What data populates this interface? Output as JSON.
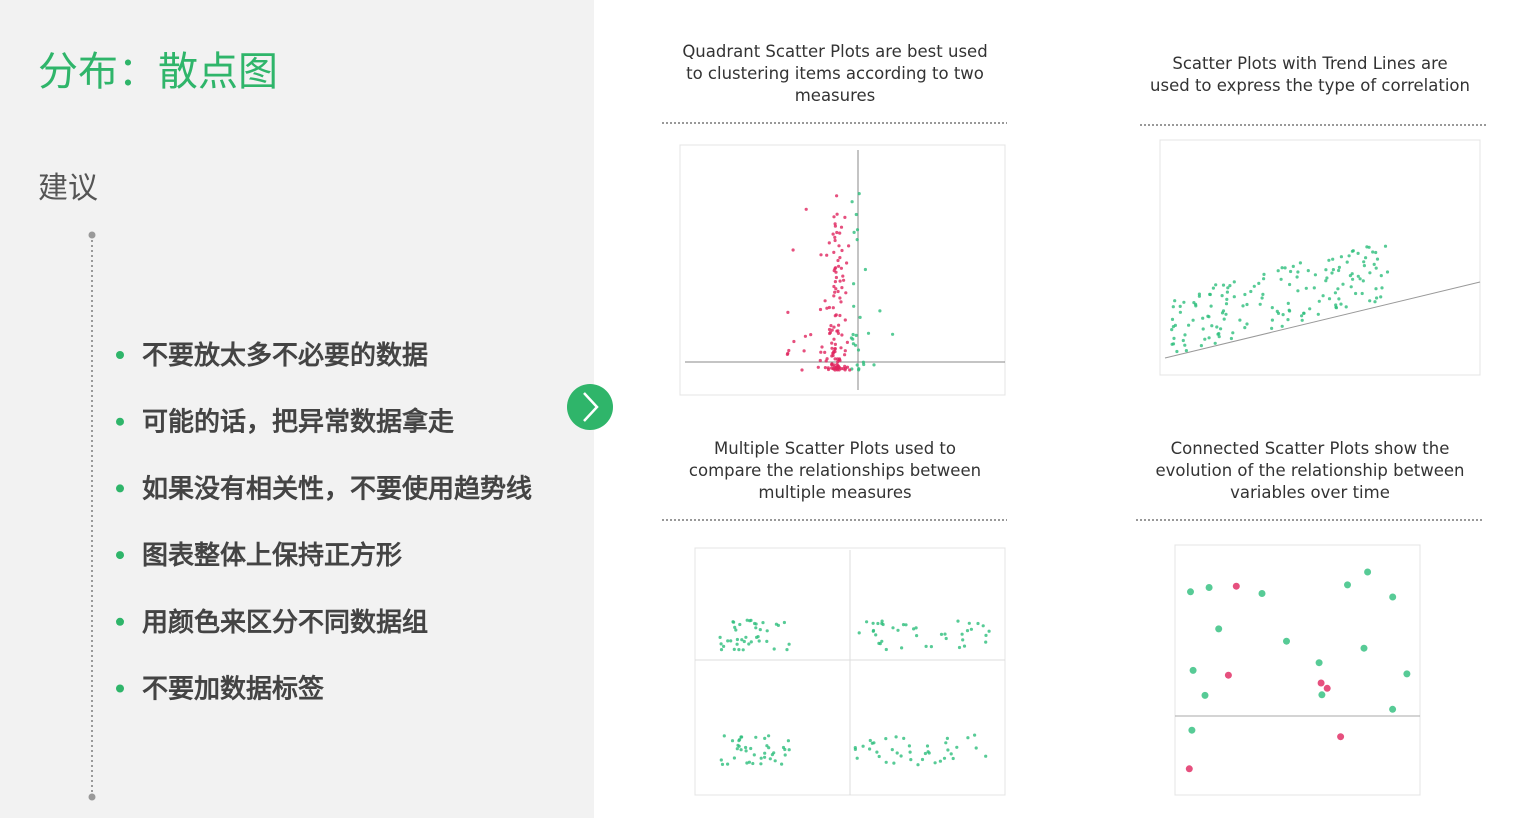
{
  "slide": {
    "title": "分布：散点图",
    "section": "建议",
    "bullets": [
      "不要放太多不必要的数据",
      "可能的话，把异常数据拿走",
      "如果没有相关性，不要使用趋势线",
      "图表整体上保持正方形",
      "用颜色来区分不同数据组",
      "不要加数据标签"
    ],
    "panels": [
      {
        "caption": [
          "Quadrant Scatter Plots are best used",
          "to clustering items according to two",
          "measures"
        ]
      },
      {
        "caption": [
          "Scatter Plots with Trend Lines are",
          "used to express the type of correlation"
        ]
      },
      {
        "caption": [
          "Multiple Scatter Plots used to",
          "compare the relationships between",
          "multiple measures"
        ]
      },
      {
        "caption": [
          "Connected Scatter Plots show the",
          "evolution of the relationship between",
          "variables over time"
        ]
      }
    ]
  }
}
